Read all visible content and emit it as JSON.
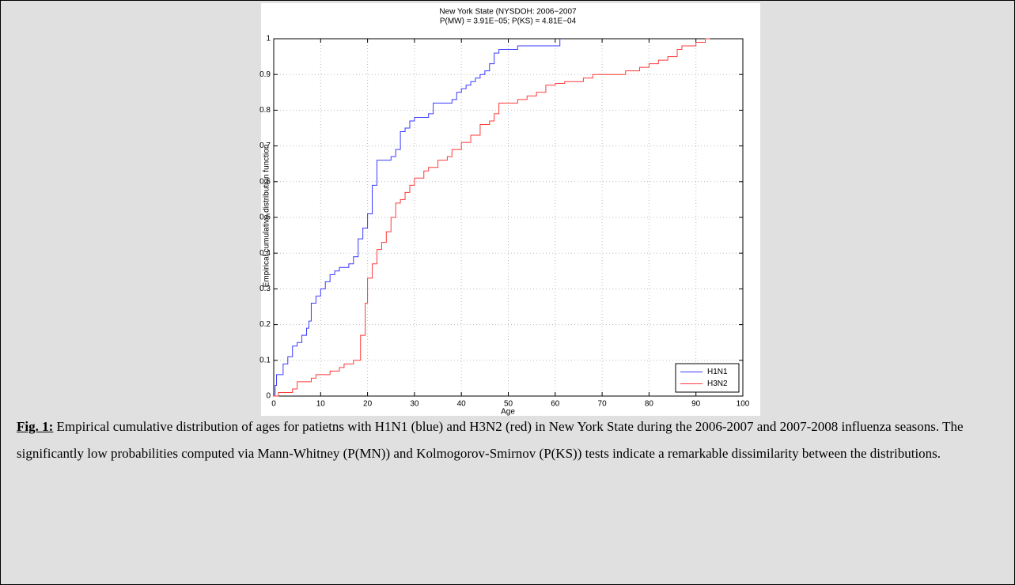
{
  "chart_data": {
    "type": "line",
    "drawstyle": "steps-post",
    "title": "New York State (NYSDOH: 2006−2007",
    "subtitle": "P(MW) = 3.91E−05; P(KS) = 4.81E−04",
    "x_label": "Age",
    "y_label": "Empirical cumulative distribution function",
    "xlim": [
      0,
      100
    ],
    "xticks": [
      0,
      10,
      20,
      30,
      40,
      50,
      60,
      70,
      80,
      90,
      100
    ],
    "ylim": [
      0,
      1
    ],
    "yticks": [
      0,
      0.1,
      0.2,
      0.3,
      0.4,
      0.5,
      0.6,
      0.7,
      0.8,
      0.9,
      1
    ],
    "grid": true,
    "legend": "lower right",
    "series": [
      {
        "name": "H1N1",
        "color": "#3a3aff",
        "x": [
          0,
          0.3,
          0.6,
          2,
          3,
          4,
          5,
          6,
          7,
          7.5,
          8,
          9,
          10,
          11,
          12,
          13,
          14,
          16,
          17,
          18,
          19,
          20,
          21,
          22,
          25,
          26,
          27,
          28,
          29,
          30,
          33,
          34,
          38,
          39,
          40,
          41,
          42,
          43,
          44,
          45,
          46,
          47,
          48,
          52,
          61
        ],
        "values": [
          0,
          0.03,
          0.06,
          0.09,
          0.11,
          0.14,
          0.15,
          0.17,
          0.19,
          0.21,
          0.26,
          0.28,
          0.3,
          0.32,
          0.34,
          0.35,
          0.36,
          0.37,
          0.39,
          0.44,
          0.47,
          0.51,
          0.59,
          0.66,
          0.67,
          0.69,
          0.74,
          0.75,
          0.77,
          0.78,
          0.79,
          0.82,
          0.83,
          0.85,
          0.86,
          0.87,
          0.88,
          0.89,
          0.9,
          0.91,
          0.93,
          0.96,
          0.97,
          0.98,
          1
        ]
      },
      {
        "name": "H3N2",
        "color": "#ff3a3a",
        "x": [
          0,
          1,
          4,
          5,
          8,
          9,
          12,
          14,
          15,
          17,
          18.5,
          19.5,
          20,
          21,
          22,
          23,
          24,
          25,
          26,
          27,
          28,
          29,
          30,
          32,
          33,
          35,
          37,
          38,
          40,
          42,
          44,
          46,
          47,
          48,
          52,
          54,
          56,
          58,
          60,
          62,
          66,
          68,
          75,
          78,
          80,
          82,
          84,
          86,
          87,
          90,
          92,
          93
        ],
        "values": [
          0,
          0.01,
          0.02,
          0.04,
          0.05,
          0.06,
          0.07,
          0.08,
          0.09,
          0.1,
          0.17,
          0.26,
          0.33,
          0.37,
          0.41,
          0.43,
          0.46,
          0.5,
          0.54,
          0.55,
          0.57,
          0.59,
          0.61,
          0.63,
          0.64,
          0.66,
          0.67,
          0.69,
          0.71,
          0.73,
          0.76,
          0.77,
          0.79,
          0.82,
          0.83,
          0.84,
          0.85,
          0.87,
          0.875,
          0.88,
          0.89,
          0.9,
          0.91,
          0.92,
          0.93,
          0.94,
          0.95,
          0.97,
          0.98,
          0.99,
          1,
          1
        ]
      }
    ]
  },
  "caption": {
    "label": "Fig. 1:",
    "text": "Empirical cumulative distribution of ages for patietns with H1N1 (blue) and H3N2 (red) in New York State during the 2006-2007 and 2007-2008 influenza seasons. The significantly low probabilities computed via Mann-Whitney (P(MN)) and Kolmogorov-Smirnov (P(KS)) tests indicate a remarkable dissimilarity between the distributions."
  }
}
